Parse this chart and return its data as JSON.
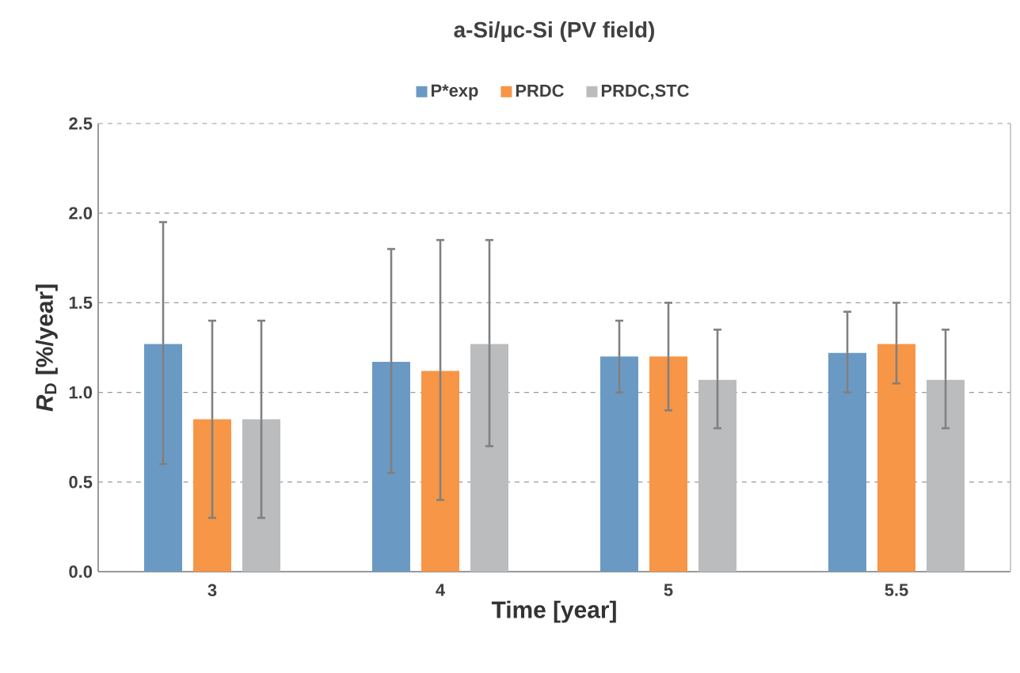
{
  "chart_data": {
    "type": "bar",
    "title": "a-Si/µc-Si (PV field)",
    "xlabel": "Time [year]",
    "ylabel": "*R*$_{D}$ [%/year]",
    "categories": [
      "3",
      "4",
      "5",
      "5.5"
    ],
    "series": [
      {
        "name": "P*exp",
        "color": "#6a9ac4",
        "values": [
          1.27,
          1.17,
          1.2,
          1.22
        ],
        "errors": [
          [
            0.6,
            1.95
          ],
          [
            0.55,
            1.8
          ],
          [
            1.0,
            1.4
          ],
          [
            1.0,
            1.45
          ]
        ]
      },
      {
        "name": "PRDC",
        "color": "#f79646",
        "values": [
          0.85,
          1.12,
          1.2,
          1.27
        ],
        "errors": [
          [
            0.3,
            1.4
          ],
          [
            0.4,
            1.85
          ],
          [
            0.9,
            1.5
          ],
          [
            1.05,
            1.5
          ]
        ]
      },
      {
        "name": "PRDC,STC",
        "color": "#bbbcbe",
        "values": [
          0.85,
          1.27,
          1.07,
          1.07
        ],
        "errors": [
          [
            0.3,
            1.4
          ],
          [
            0.7,
            1.85
          ],
          [
            0.8,
            1.35
          ],
          [
            0.8,
            1.35
          ]
        ]
      }
    ],
    "ylim": [
      0,
      2.5
    ],
    "yticks": [
      {
        "value": 0,
        "label": "0.0"
      },
      0.5,
      {
        "value": 1,
        "label": "1.0"
      },
      1.5,
      {
        "value": 2,
        "label": "2.0"
      },
      2.5
    ],
    "grid": "y",
    "legend": "top"
  }
}
